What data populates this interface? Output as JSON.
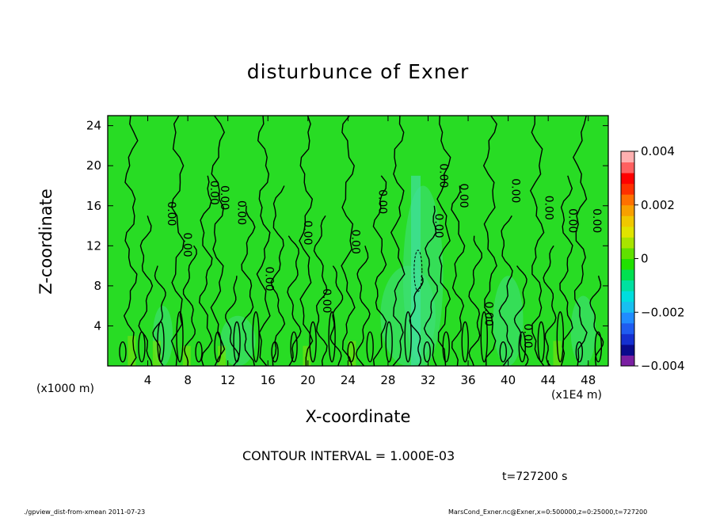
{
  "footer": {
    "left": "./gpview_dist-from-xmean  2011-07-23",
    "right": "MarsCond_Exner.nc@Exner,x=0:500000,z=0:25000,t=727200"
  },
  "annotations": {
    "interval": "CONTOUR INTERVAL = 1.000E-03",
    "time": "t=727200 s",
    "x_unit": "(x1000 m)",
    "x_scale": "(x1E4 m)"
  },
  "chart_data": {
    "type": "heatmap",
    "title": "disturbunce of Exner",
    "xlabel": "X-coordinate",
    "ylabel": "Z-coordinate",
    "xlim": [
      0,
      50
    ],
    "ylim": [
      0,
      25
    ],
    "x_ticks": [
      4,
      8,
      12,
      16,
      20,
      24,
      28,
      32,
      36,
      40,
      44,
      48
    ],
    "x_tick_labels": [
      "4",
      "8",
      "12",
      "16",
      "20",
      "24",
      "28",
      "32",
      "36",
      "40",
      "44",
      "48"
    ],
    "y_ticks": [
      4,
      8,
      12,
      16,
      20,
      24
    ],
    "y_tick_labels": [
      "4",
      "8",
      "12",
      "16",
      "20",
      "24"
    ],
    "contour_interval": 0.001,
    "contour_labels": [
      {
        "text": "0.00",
        "x": 6.0,
        "y": 15.2
      },
      {
        "text": "0.00",
        "x": 7.6,
        "y": 12.1
      },
      {
        "text": "0.00",
        "x": 10.3,
        "y": 17.3
      },
      {
        "text": "0.00",
        "x": 11.3,
        "y": 16.8
      },
      {
        "text": "0.00",
        "x": 13.0,
        "y": 15.3
      },
      {
        "text": "0.00",
        "x": 15.8,
        "y": 8.7
      },
      {
        "text": "0.00",
        "x": 19.6,
        "y": 13.3
      },
      {
        "text": "0.00",
        "x": 21.5,
        "y": 6.5
      },
      {
        "text": "0.00",
        "x": 24.4,
        "y": 12.4
      },
      {
        "text": "0.00",
        "x": 27.1,
        "y": 16.4
      },
      {
        "text": "0.00",
        "x": 32.7,
        "y": 14.0
      },
      {
        "text": "0.00",
        "x": 33.2,
        "y": 19.0
      },
      {
        "text": "0.00",
        "x": 35.2,
        "y": 17.0
      },
      {
        "text": "0.00",
        "x": 37.7,
        "y": 5.2
      },
      {
        "text": "0.00",
        "x": 40.4,
        "y": 17.5
      },
      {
        "text": "0.00",
        "x": 41.6,
        "y": 3.0
      },
      {
        "text": "0.00",
        "x": 43.7,
        "y": 15.8
      },
      {
        "text": "0.00",
        "x": 46.1,
        "y": 14.5
      },
      {
        "text": "0.00",
        "x": 48.5,
        "y": 14.5
      }
    ],
    "colorbar": {
      "min": -0.004,
      "max": 0.004,
      "tick_labels": [
        "0.004",
        "0.002",
        "0",
        "−0.002",
        "−0.004"
      ],
      "tick_values": [
        0.004,
        0.002,
        0,
        -0.002,
        -0.004
      ],
      "colors": [
        "#7a1fa2",
        "#0a0a8c",
        "#1530d0",
        "#1f5cf0",
        "#208cff",
        "#18bff0",
        "#00dede",
        "#00e0a0",
        "#00e050",
        "#20e000",
        "#60e000",
        "#a8e400",
        "#e0e400",
        "#f0c800",
        "#f8a000",
        "#ff7000",
        "#ff3000",
        "#ff0000",
        "#ff6060",
        "#ffb0b0"
      ]
    },
    "background_value": 0.0,
    "grid": false,
    "legend": "right"
  }
}
